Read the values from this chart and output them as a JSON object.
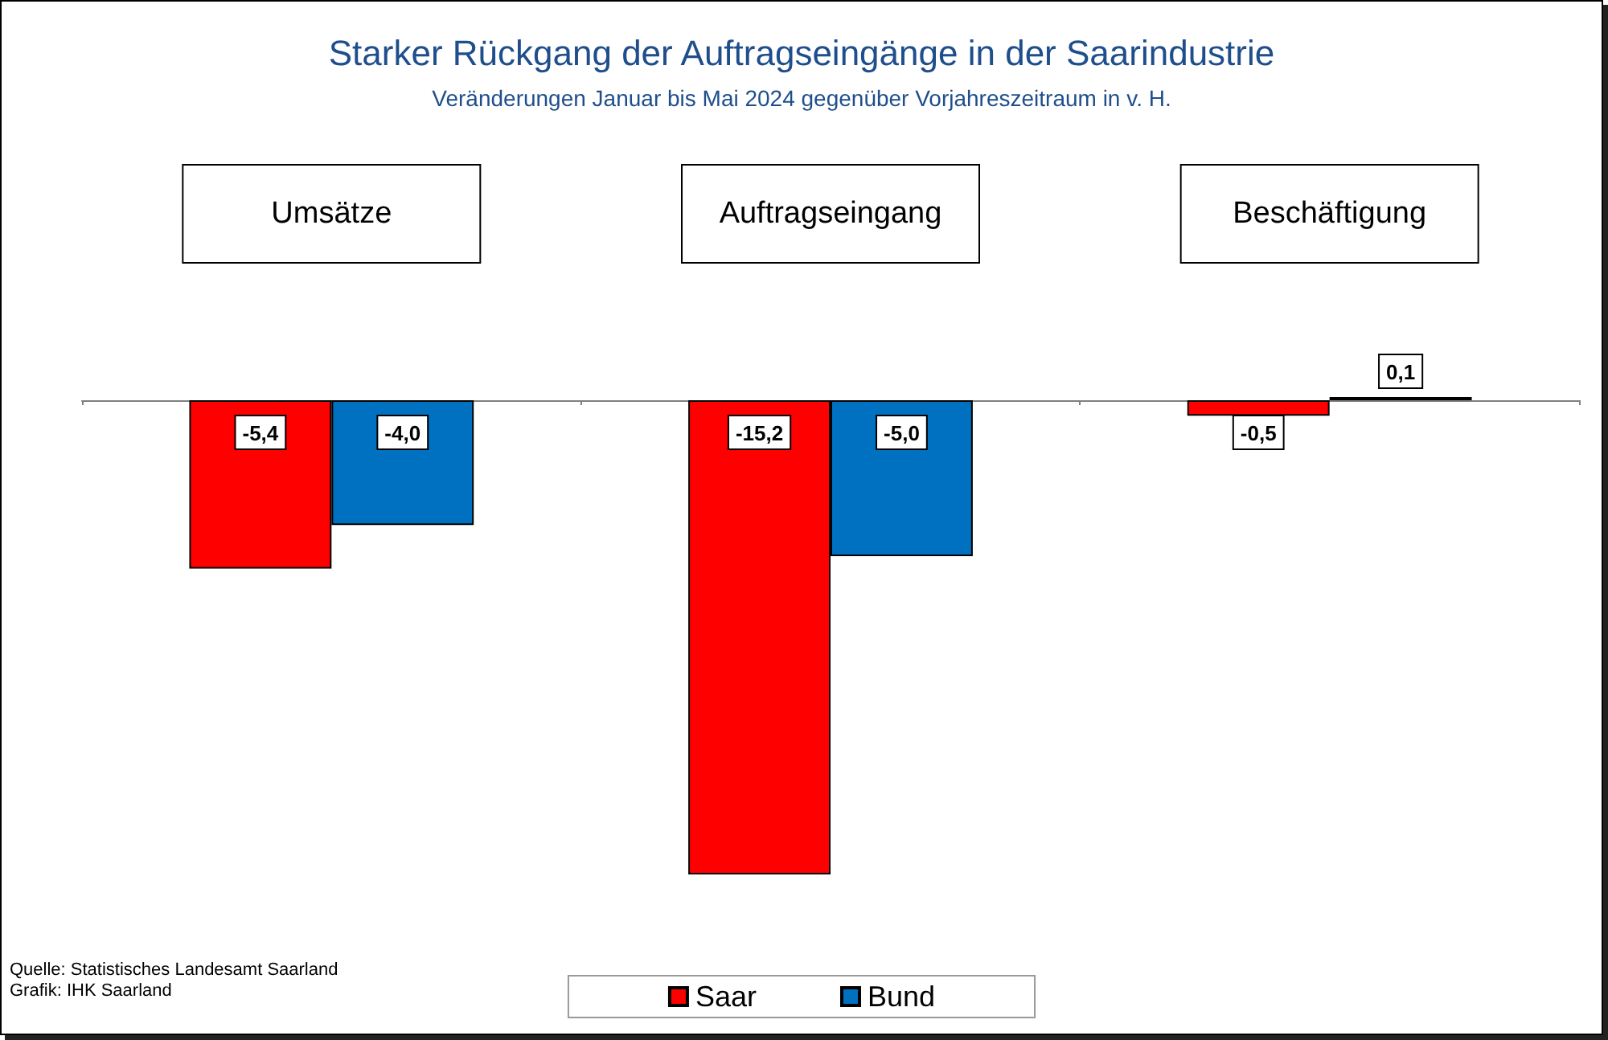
{
  "chart_data": {
    "type": "bar",
    "title": "Starker Rückgang der Auftragseingänge in der Saarindustrie",
    "subtitle": "Veränderungen Januar bis Mai 2024 gegenüber Vorjahreszeitraum in v. H.",
    "categories": [
      "Umsätze",
      "Auftragseingang",
      "Beschäftigung"
    ],
    "series": [
      {
        "name": "Saar",
        "color": "#ff0000",
        "values": [
          -5.4,
          -15.2,
          -0.5
        ],
        "value_labels": [
          "-5,4",
          "-15,2",
          "-0,5"
        ]
      },
      {
        "name": "Bund",
        "color": "#0070c0",
        "values": [
          -4.0,
          -5.0,
          0.1
        ],
        "value_labels": [
          "-4,0",
          "-5,0",
          "0,1"
        ]
      }
    ],
    "legend": "bottom",
    "tick_labels": "x",
    "annotations": [
      "Quelle: Statistisches Landesamt Saarland",
      "Grafik: IHK Saarland"
    ]
  }
}
